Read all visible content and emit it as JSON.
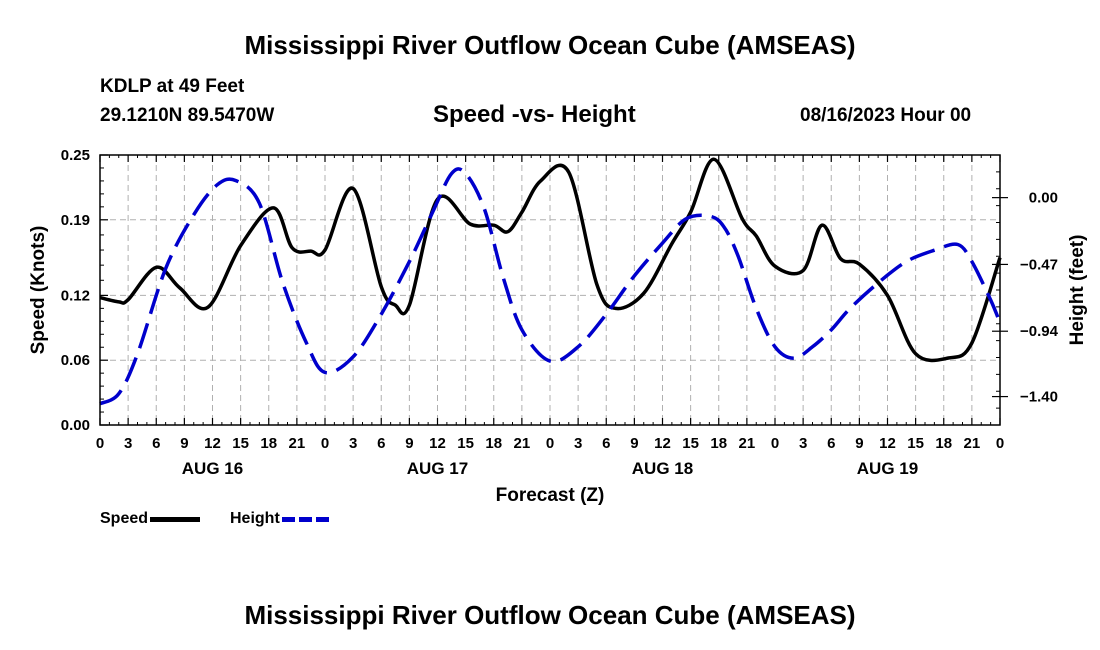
{
  "header": {
    "title": "Mississippi River Outflow Ocean Cube (AMSEAS)",
    "station": "KDLP at 49 Feet",
    "coords": "29.1210N  89.5470W",
    "chart_title": "Speed -vs- Height",
    "datetime": "08/16/2023 Hour 00",
    "footer_title": "Mississippi River Outflow Ocean Cube (AMSEAS)"
  },
  "legend": {
    "speed_label": "Speed",
    "height_label": "Height"
  },
  "colors": {
    "speed": "#000000",
    "height": "#0000cc",
    "grid": "#b0b0b0"
  },
  "chart_data": {
    "type": "line",
    "title": "Speed -vs- Height",
    "xlabel": "Forecast (Z)",
    "ylabel_left": "Speed (Knots)",
    "ylabel_right": "Height (feet)",
    "x_unit": "hours since 08/16/2023 00Z",
    "xlim": [
      0,
      96
    ],
    "x_tick_labels": [
      "0",
      "3",
      "6",
      "9",
      "12",
      "15",
      "18",
      "21",
      "0",
      "3",
      "6",
      "9",
      "12",
      "15",
      "18",
      "21",
      "0",
      "3",
      "6",
      "9",
      "12",
      "15",
      "18",
      "21",
      "0",
      "3",
      "6",
      "9",
      "12",
      "15",
      "18",
      "21",
      "0"
    ],
    "day_labels": [
      {
        "hour": 12,
        "label": "AUG 16"
      },
      {
        "hour": 36,
        "label": "AUG 17"
      },
      {
        "hour": 60,
        "label": "AUG 18"
      },
      {
        "hour": 84,
        "label": "AUG 19"
      }
    ],
    "left_axis": {
      "ylim": [
        0,
        0.25
      ],
      "ticks": [
        "0.00",
        "0.06",
        "0.12",
        "0.19",
        "0.25"
      ]
    },
    "right_axis": {
      "ylim": [
        -1.6,
        0.3
      ],
      "ticks": [
        "0.00",
        "−0.47",
        "−0.94",
        "−1.40"
      ]
    },
    "grid": true,
    "series": [
      {
        "name": "Speed",
        "axis": "left",
        "style": "solid",
        "x": [
          0,
          2,
          3,
          6,
          8.5,
          11.5,
          15,
          18.5,
          20.5,
          22.5,
          24,
          27,
          30,
          31.5,
          33,
          36,
          39.5,
          42,
          43.5,
          45,
          47,
          50,
          53,
          55,
          58,
          61,
          63,
          65.5,
          68.5,
          70,
          72,
          75,
          77,
          79,
          81,
          84,
          87,
          90.5,
          93,
          96
        ],
        "values": [
          0.118,
          0.114,
          0.116,
          0.146,
          0.127,
          0.109,
          0.166,
          0.201,
          0.164,
          0.161,
          0.162,
          0.219,
          0.128,
          0.111,
          0.111,
          0.209,
          0.186,
          0.185,
          0.179,
          0.197,
          0.226,
          0.234,
          0.13,
          0.108,
          0.122,
          0.168,
          0.197,
          0.246,
          0.191,
          0.175,
          0.147,
          0.143,
          0.185,
          0.154,
          0.149,
          0.12,
          0.066,
          0.062,
          0.076,
          0.155
        ]
      },
      {
        "name": "Height",
        "axis": "right",
        "style": "dashed",
        "x": [
          0,
          2,
          4,
          7,
          10,
          12.5,
          14.5,
          17,
          19.5,
          22,
          24,
          27,
          30,
          33,
          35.5,
          37.5,
          39,
          41,
          43,
          45,
          48,
          51,
          54,
          57,
          60,
          62.5,
          65,
          66.5,
          68,
          70,
          72,
          74,
          76,
          78,
          80,
          83,
          86,
          89,
          91.5,
          93,
          95,
          96
        ],
        "values": [
          -1.45,
          -1.38,
          -1.1,
          -0.5,
          -0.12,
          0.09,
          0.12,
          -0.04,
          -0.6,
          -1.02,
          -1.23,
          -1.12,
          -0.82,
          -0.45,
          -0.1,
          0.17,
          0.17,
          -0.08,
          -0.56,
          -0.93,
          -1.15,
          -1.05,
          -0.82,
          -0.55,
          -0.32,
          -0.15,
          -0.13,
          -0.2,
          -0.4,
          -0.78,
          -1.05,
          -1.13,
          -1.05,
          -0.93,
          -0.78,
          -0.6,
          -0.45,
          -0.37,
          -0.33,
          -0.45,
          -0.72,
          -0.88
        ]
      }
    ]
  }
}
